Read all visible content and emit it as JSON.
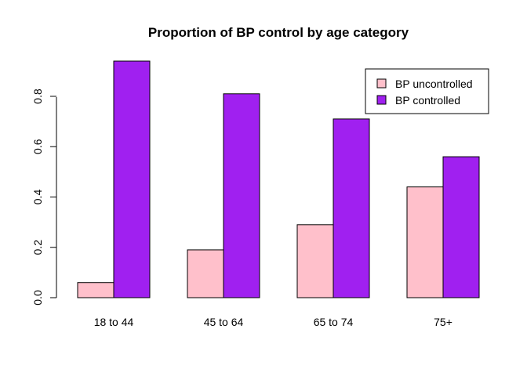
{
  "chart_data": {
    "type": "bar",
    "title": "Proportion of BP control by age category",
    "xlabel": "",
    "ylabel": "",
    "categories": [
      "18 to 44",
      "45 to 64",
      "65 to 74",
      "75+"
    ],
    "series": [
      {
        "name": "BP uncontrolled",
        "color": "#FFC0CB",
        "values": [
          0.06,
          0.19,
          0.29,
          0.44
        ]
      },
      {
        "name": "BP controlled",
        "color": "#A020F0",
        "values": [
          0.94,
          0.81,
          0.71,
          0.56
        ]
      }
    ],
    "yticks": [
      "0.0",
      "0.2",
      "0.4",
      "0.6",
      "0.8"
    ],
    "ylim": [
      0,
      0.94
    ],
    "grid": false,
    "legend_position": "top-right"
  }
}
